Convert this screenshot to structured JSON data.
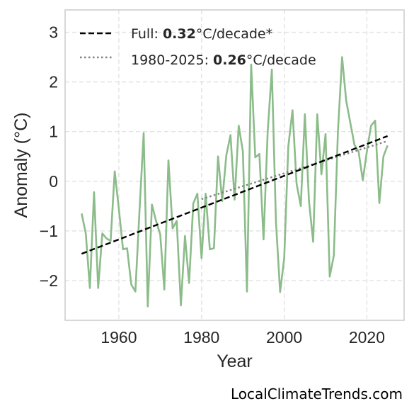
{
  "chart_data": {
    "type": "line",
    "xlabel": "Year",
    "ylabel": "Anomaly (°C)",
    "xlim": [
      1947,
      2029
    ],
    "ylim": [
      -2.8,
      3.45
    ],
    "xticks": [
      1960,
      1980,
      2000,
      2020
    ],
    "yticks": [
      -2,
      -1,
      0,
      1,
      2,
      3
    ],
    "grid": true,
    "legend_position": "top-left",
    "series": [
      {
        "color": "#8bbc89",
        "x": [
          1951,
          1952,
          1953,
          1954,
          1955,
          1956,
          1957,
          1958,
          1959,
          1960,
          1961,
          1962,
          1963,
          1964,
          1965,
          1966,
          1967,
          1968,
          1969,
          1970,
          1971,
          1972,
          1973,
          1974,
          1975,
          1976,
          1977,
          1978,
          1979,
          1980,
          1981,
          1982,
          1983,
          1984,
          1985,
          1986,
          1987,
          1988,
          1989,
          1990,
          1991,
          1992,
          1993,
          1994,
          1995,
          1996,
          1997,
          1998,
          1999,
          2000,
          2001,
          2002,
          2003,
          2004,
          2005,
          2006,
          2007,
          2008,
          2009,
          2010,
          2011,
          2012,
          2013,
          2014,
          2015,
          2016,
          2017,
          2018,
          2019,
          2020,
          2021,
          2022,
          2023,
          2024,
          2025
        ],
        "y": [
          -0.65,
          -1.05,
          -2.15,
          -0.22,
          -2.15,
          -1.05,
          -1.15,
          -1.2,
          0.2,
          -0.55,
          -1.37,
          -1.35,
          -2.08,
          -2.22,
          -0.6,
          0.97,
          -2.52,
          -0.47,
          -0.8,
          -1.07,
          -2.18,
          0.42,
          -0.95,
          -0.8,
          -2.5,
          -1.1,
          -2.05,
          -0.45,
          -0.25,
          -1.55,
          -0.25,
          -1.37,
          -1.35,
          0.5,
          -0.4,
          0.52,
          0.93,
          -0.37,
          1.12,
          0.6,
          -2.22,
          2.35,
          0.48,
          0.55,
          -1.17,
          0.98,
          2.25,
          -0.8,
          -2.23,
          -1.55,
          0.7,
          1.43,
          -0.05,
          -0.5,
          1.35,
          -0.4,
          -1.22,
          1.35,
          0.14,
          0.95,
          -1.92,
          -1.5,
          1.0,
          2.5,
          1.62,
          1.17,
          0.73,
          0.6,
          0.02,
          0.6,
          1.12,
          1.22,
          -0.44,
          0.5,
          0.72
        ]
      }
    ],
    "trend_full": {
      "label": "Full: ",
      "rate": "0.32",
      "unit": "°C/decade*",
      "x": [
        1951,
        2025
      ],
      "y": [
        -1.46,
        0.91
      ],
      "color": "#000000"
    },
    "trend_recent": {
      "label": "1980-2025: ",
      "rate": "0.26",
      "unit": "°C/decade",
      "x": [
        1980,
        2025
      ],
      "y": [
        -0.36,
        0.81
      ],
      "color": "#808080"
    }
  },
  "credit": "LocalClimateTrends.com"
}
